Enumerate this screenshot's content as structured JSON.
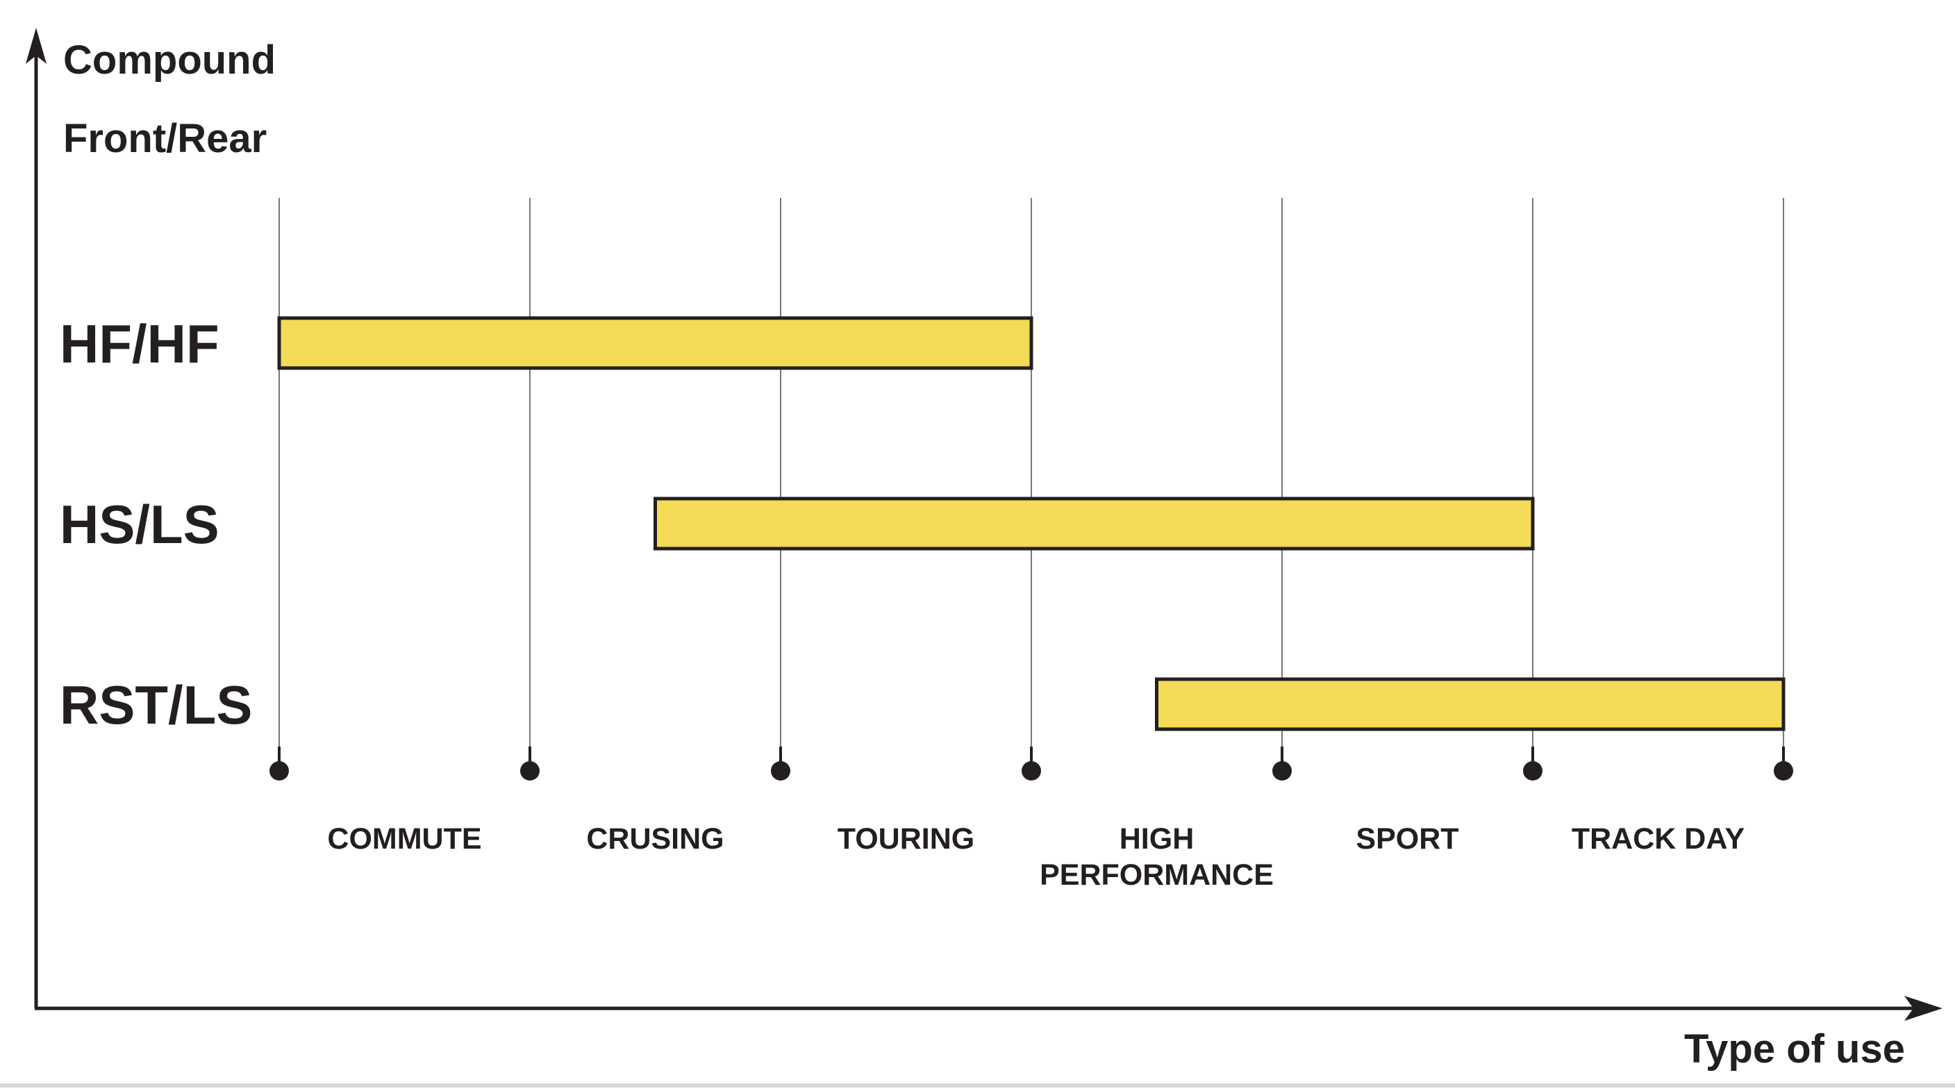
{
  "chart_data": {
    "type": "bar",
    "subtype": "range",
    "ylabel_lines": [
      "Compound",
      "Front/Rear"
    ],
    "xlabel": "Type of use",
    "categories": [
      [
        "COMMUTE"
      ],
      [
        "CRUSING"
      ],
      [
        "TOURING"
      ],
      [
        "HIGH",
        "PERFORMANCE"
      ],
      [
        "SPORT"
      ],
      [
        "TRACK DAY"
      ]
    ],
    "xlim": [
      0,
      6
    ],
    "grid": true,
    "series": [
      {
        "name": "HF/HF",
        "start": 0,
        "end": 3
      },
      {
        "name": "HS/LS",
        "start": 1.5,
        "end": 5
      },
      {
        "name": "RST/LS",
        "start": 3.5,
        "end": 6
      }
    ],
    "colors": {
      "bar_fill": "#f3db55",
      "bar_stroke": "#231f20",
      "axis": "#231f20",
      "grid": "#555555",
      "text": "#231f20",
      "baseline": "#d9d9d9"
    }
  }
}
